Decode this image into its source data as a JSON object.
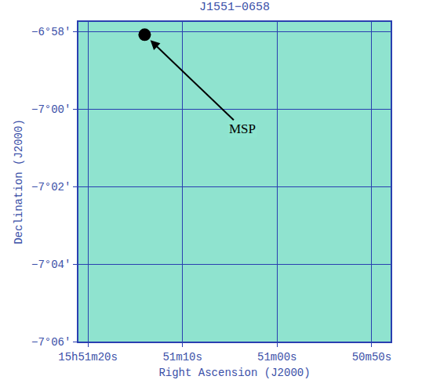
{
  "chart_data": {
    "type": "scatter",
    "title": "J1551−0658",
    "x_label": "Right Ascension (J2000)",
    "y_label": "Declination (J2000)",
    "x": [
      57074
    ],
    "y": [
      -6.968
    ],
    "marker": "circle",
    "color": "#000000",
    "xlim": [
      57081,
      57048
    ],
    "xticks": [
      {
        "value": 57080,
        "label": "15h51m20s"
      },
      {
        "value": 57070,
        "label": "51m10s"
      },
      {
        "value": 57060,
        "label": "51m00s"
      },
      {
        "value": 57050,
        "label": "50m50s"
      }
    ],
    "ylim": [
      -7.1,
      -6.9625
    ],
    "yticks": [
      {
        "value": -6.966667,
        "label": "−6°58′"
      },
      {
        "value": -7.0,
        "label": "−7°00′"
      },
      {
        "value": -7.033333,
        "label": "−7°02′"
      },
      {
        "value": -7.066667,
        "label": "−7°04′"
      },
      {
        "value": -7.1,
        "label": "−7°06′"
      }
    ],
    "grid": true,
    "annotations": [
      {
        "text": "MSP",
        "x": 57074,
        "y": -6.968
      }
    ]
  }
}
